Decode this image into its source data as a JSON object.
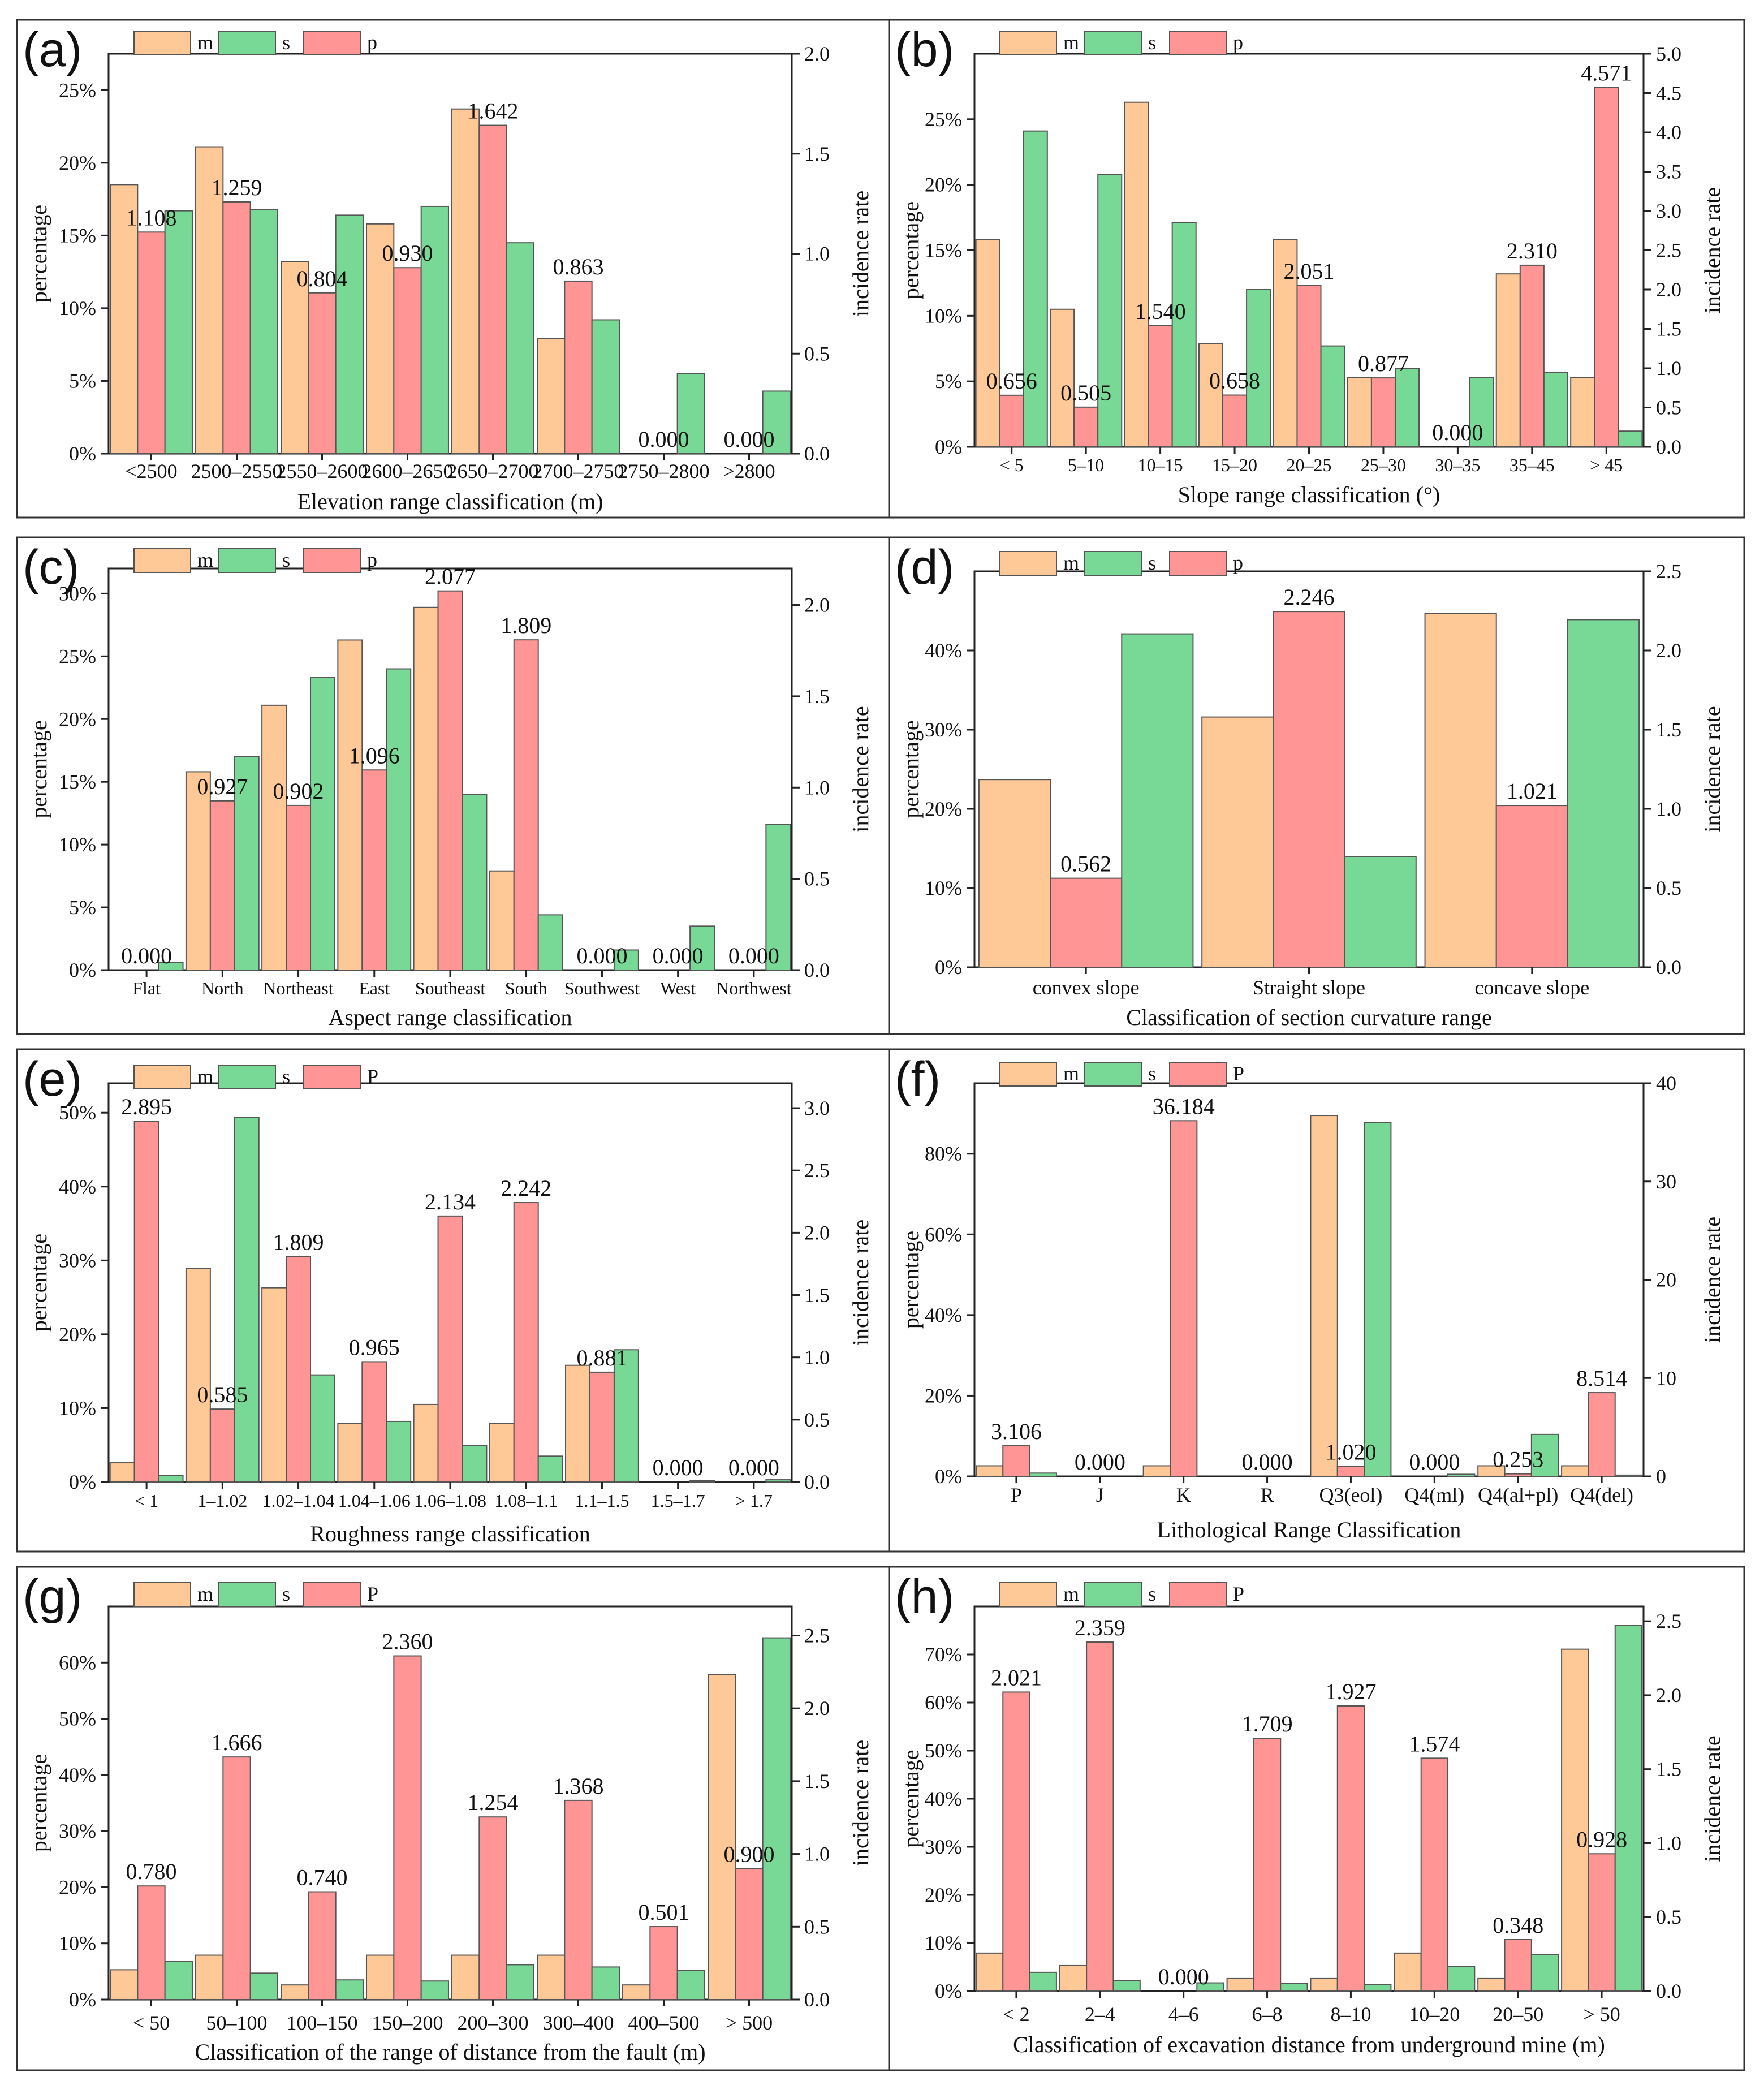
{
  "colors": {
    "m": "#FFC897",
    "s": "#78D896",
    "p": "#FF9595"
  },
  "chart_data": [
    {
      "id": "a",
      "type": "bar",
      "panel_label": "(a)",
      "xlabel": "Elevation range classification (m)",
      "ylabel": "percentage",
      "ylabel_right": "incidence rate",
      "legend": [
        "m",
        "s",
        "p"
      ],
      "categories": [
        "<2500",
        "2500–2550",
        "2550–2600",
        "2600–2650",
        "2650–2700",
        "2700–2750",
        "2750–2800",
        ">2800"
      ],
      "series": [
        {
          "name": "m",
          "axis": "left",
          "values": [
            18.5,
            21.1,
            13.2,
            15.8,
            23.7,
            7.9,
            0,
            0
          ]
        },
        {
          "name": "p",
          "axis": "right",
          "values": [
            1.108,
            1.259,
            0.804,
            0.93,
            1.642,
            0.863,
            0,
            0
          ]
        },
        {
          "name": "s",
          "axis": "left",
          "values": [
            16.7,
            16.8,
            16.4,
            17.0,
            14.5,
            9.2,
            5.5,
            4.3
          ]
        }
      ],
      "p_labels": [
        "1.108",
        "1.259",
        "0.804",
        "0.930",
        "1.642",
        "0.863",
        "0.000",
        "0.000"
      ],
      "ylim": [
        0,
        27.5
      ],
      "y2lim": [
        0,
        2.0
      ],
      "yticks": [
        0,
        5,
        10,
        15,
        20,
        25
      ],
      "yticklabels": [
        "0%",
        "5%",
        "10%",
        "15%",
        "20%",
        "25%"
      ],
      "y2ticks": [
        0,
        0.5,
        1.0,
        1.5,
        2.0
      ],
      "y2ticklabels": [
        "0.0",
        "0.5",
        "1.0",
        "1.5",
        "2.0"
      ]
    },
    {
      "id": "b",
      "type": "bar",
      "panel_label": "(b)",
      "xlabel": "Slope range classification (°)",
      "ylabel": "percentage",
      "ylabel_right": "incidence rate",
      "legend": [
        "m",
        "s",
        "p"
      ],
      "categories": [
        "< 5",
        "5–10",
        "10–15",
        "15–20",
        "20–25",
        "25–30",
        "30–35",
        "35–45",
        "> 45"
      ],
      "series": [
        {
          "name": "m",
          "axis": "left",
          "values": [
            15.8,
            10.5,
            26.3,
            7.9,
            15.8,
            5.3,
            0,
            13.2,
            5.3
          ]
        },
        {
          "name": "p",
          "axis": "right",
          "values": [
            0.656,
            0.505,
            1.54,
            0.658,
            2.051,
            0.877,
            0,
            2.31,
            4.571
          ]
        },
        {
          "name": "s",
          "axis": "left",
          "values": [
            24.1,
            20.8,
            17.1,
            12.0,
            7.7,
            6.0,
            5.3,
            5.7,
            1.2
          ]
        }
      ],
      "p_labels": [
        "0.656",
        "0.505",
        "1.540",
        "0.658",
        "2.051",
        "0.877",
        "0.000",
        "2.310",
        "4.571"
      ],
      "ylim": [
        0,
        30
      ],
      "y2lim": [
        0,
        5.0
      ],
      "yticks": [
        0,
        5,
        10,
        15,
        20,
        25
      ],
      "yticklabels": [
        "0%",
        "5%",
        "10%",
        "15%",
        "20%",
        "25%"
      ],
      "y2ticks": [
        0,
        0.5,
        1.0,
        1.5,
        2.0,
        2.5,
        3.0,
        3.5,
        4.0,
        4.5,
        5.0
      ],
      "y2ticklabels": [
        "0.0",
        "0.5",
        "1.0",
        "1.5",
        "2.0",
        "2.5",
        "3.0",
        "3.5",
        "4.0",
        "4.5",
        "5.0"
      ]
    },
    {
      "id": "c",
      "type": "bar",
      "panel_label": "(c)",
      "xlabel": "Aspect range classification",
      "ylabel": "percentage",
      "ylabel_right": "incidence rate",
      "legend": [
        "m",
        "s",
        "p"
      ],
      "categories": [
        "Flat",
        "North",
        "Northeast",
        "East",
        "Southeast",
        "South",
        "Southwest",
        "West",
        "Northwest"
      ],
      "series": [
        {
          "name": "m",
          "axis": "left",
          "values": [
            0,
            15.8,
            21.1,
            26.3,
            28.9,
            7.9,
            0,
            0,
            0
          ]
        },
        {
          "name": "p",
          "axis": "right",
          "values": [
            0,
            0.927,
            0.902,
            1.096,
            2.077,
            1.809,
            0,
            0,
            0
          ]
        },
        {
          "name": "s",
          "axis": "left",
          "values": [
            0.6,
            17.0,
            23.3,
            24.0,
            14.0,
            4.4,
            1.6,
            3.5,
            11.6
          ]
        }
      ],
      "p_labels": [
        "0.000",
        "0.927",
        "0.902",
        "1.096",
        "2.077",
        "1.809",
        "0.000",
        "0.000",
        "0.000"
      ],
      "ylim": [
        0,
        32
      ],
      "y2lim": [
        0,
        2.2
      ],
      "yticks": [
        0,
        5,
        10,
        15,
        20,
        25,
        30
      ],
      "yticklabels": [
        "0%",
        "5%",
        "10%",
        "15%",
        "20%",
        "25%",
        "30%"
      ],
      "y2ticks": [
        0,
        0.5,
        1.0,
        1.5,
        2.0
      ],
      "y2ticklabels": [
        "0.0",
        "0.5",
        "1.0",
        "1.5",
        "2.0"
      ]
    },
    {
      "id": "d",
      "type": "bar",
      "panel_label": "(d)",
      "xlabel": "Classification of section curvature range",
      "ylabel": "percentage",
      "ylabel_right": "incidence rate",
      "legend": [
        "m",
        "s",
        "p"
      ],
      "categories": [
        "convex slope",
        "Straight slope",
        "concave slope"
      ],
      "series": [
        {
          "name": "m",
          "axis": "left",
          "values": [
            23.7,
            31.6,
            44.7
          ]
        },
        {
          "name": "p",
          "axis": "right",
          "values": [
            0.562,
            2.246,
            1.021
          ]
        },
        {
          "name": "s",
          "axis": "left",
          "values": [
            42.1,
            14.0,
            43.9
          ]
        }
      ],
      "p_labels": [
        "0.562",
        "2.246",
        "1.021"
      ],
      "ylim": [
        0,
        50
      ],
      "y2lim": [
        0,
        2.5
      ],
      "yticks": [
        0,
        10,
        20,
        30,
        40
      ],
      "yticklabels": [
        "0%",
        "10%",
        "20%",
        "30%",
        "40%"
      ],
      "y2ticks": [
        0,
        0.5,
        1.0,
        1.5,
        2.0,
        2.5
      ],
      "y2ticklabels": [
        "0.0",
        "0.5",
        "1.0",
        "1.5",
        "2.0",
        "2.5"
      ]
    },
    {
      "id": "e",
      "type": "bar",
      "panel_label": "(e)",
      "xlabel": "Roughness range classification",
      "ylabel": "percentage",
      "ylabel_right": "incidence rate",
      "legend": [
        "m",
        "s",
        "P"
      ],
      "categories": [
        "< 1",
        "1–1.02",
        "1.02–1.04",
        "1.04–1.06",
        "1.06–1.08",
        "1.08–1.1",
        "1.1–1.5",
        "1.5–1.7",
        "> 1.7"
      ],
      "series": [
        {
          "name": "m",
          "axis": "left",
          "values": [
            2.6,
            28.9,
            26.3,
            7.9,
            10.5,
            7.9,
            15.8,
            0,
            0
          ]
        },
        {
          "name": "p",
          "axis": "right",
          "values": [
            2.895,
            0.585,
            1.809,
            0.965,
            2.134,
            2.242,
            0.881,
            0,
            0
          ]
        },
        {
          "name": "s",
          "axis": "left",
          "values": [
            0.9,
            49.4,
            14.5,
            8.2,
            4.9,
            3.5,
            17.9,
            0.2,
            0.3
          ]
        }
      ],
      "p_labels": [
        "2.895",
        "0.585",
        "1.809",
        "0.965",
        "2.134",
        "2.242",
        "0.881",
        "0.000",
        "0.000"
      ],
      "ylim": [
        0,
        54
      ],
      "y2lim": [
        0,
        3.2
      ],
      "yticks": [
        0,
        10,
        20,
        30,
        40,
        50
      ],
      "yticklabels": [
        "0%",
        "10%",
        "20%",
        "30%",
        "40%",
        "50%"
      ],
      "y2ticks": [
        0,
        0.5,
        1.0,
        1.5,
        2.0,
        2.5,
        3.0
      ],
      "y2ticklabels": [
        "0.0",
        "0.5",
        "1.0",
        "1.5",
        "2.0",
        "2.5",
        "3.0"
      ]
    },
    {
      "id": "f",
      "type": "bar",
      "panel_label": "(f)",
      "xlabel": "Lithological Range Classification",
      "ylabel": "percentage",
      "ylabel_right": "incidence rate",
      "legend": [
        "m",
        "s",
        "P"
      ],
      "categories": [
        "P",
        "J",
        "K",
        "R",
        "Q3(eol)",
        "Q4(ml)",
        "Q4(al+pl)",
        "Q4(del)"
      ],
      "series": [
        {
          "name": "m",
          "axis": "left",
          "values": [
            2.6,
            0,
            2.6,
            0,
            89.5,
            0,
            2.6,
            2.6
          ]
        },
        {
          "name": "p",
          "axis": "right",
          "values": [
            3.106,
            0,
            36.184,
            0,
            1.02,
            0,
            0.253,
            8.514
          ]
        },
        {
          "name": "s",
          "axis": "left",
          "values": [
            0.8,
            0,
            0,
            0,
            87.8,
            0.5,
            10.4,
            0.3
          ]
        }
      ],
      "p_labels": [
        "3.106",
        "0.000",
        "36.184",
        "0.000",
        "1.020",
        "0.000",
        "0.253",
        "8.514"
      ],
      "ylim": [
        0,
        97.5
      ],
      "y2lim": [
        0,
        40
      ],
      "yticks": [
        0,
        20,
        40,
        60,
        80
      ],
      "yticklabels": [
        "0%",
        "20%",
        "40%",
        "60%",
        "80%"
      ],
      "y2ticks": [
        0,
        10,
        20,
        30,
        40
      ],
      "y2ticklabels": [
        "0",
        "10",
        "20",
        "30",
        "40"
      ]
    },
    {
      "id": "g",
      "type": "bar",
      "panel_label": "(g)",
      "xlabel": "Classification of the range of distance from the fault (m)",
      "ylabel": "percentage",
      "ylabel_right": "incidence rate",
      "legend": [
        "m",
        "s",
        "P"
      ],
      "categories": [
        "< 50",
        "50–100",
        "100–150",
        "150–200",
        "200–300",
        "300–400",
        "400–500",
        "> 500"
      ],
      "series": [
        {
          "name": "m",
          "axis": "left",
          "values": [
            5.3,
            7.9,
            2.6,
            7.9,
            7.9,
            7.9,
            2.6,
            57.9
          ]
        },
        {
          "name": "p",
          "axis": "right",
          "values": [
            0.78,
            1.666,
            0.74,
            2.36,
            1.254,
            1.368,
            0.501,
            0.9
          ]
        },
        {
          "name": "s",
          "axis": "left",
          "values": [
            6.8,
            4.7,
            3.5,
            3.3,
            6.2,
            5.8,
            5.2,
            64.4
          ]
        }
      ],
      "p_labels": [
        "0.780",
        "1.666",
        "0.740",
        "2.360",
        "1.254",
        "1.368",
        "0.501",
        "0.900"
      ],
      "ylim": [
        0,
        70
      ],
      "y2lim": [
        0,
        2.7
      ],
      "yticks": [
        0,
        10,
        20,
        30,
        40,
        50,
        60
      ],
      "yticklabels": [
        "0%",
        "10%",
        "20%",
        "30%",
        "40%",
        "50%",
        "60%"
      ],
      "y2ticks": [
        0,
        0.5,
        1.0,
        1.5,
        2.0,
        2.5
      ],
      "y2ticklabels": [
        "0.0",
        "0.5",
        "1.0",
        "1.5",
        "2.0",
        "2.5"
      ]
    },
    {
      "id": "h",
      "type": "bar",
      "panel_label": "(h)",
      "xlabel": "Classification of excavation distance from underground mine (m)",
      "ylabel": "percentage",
      "ylabel_right": "incidence rate",
      "legend": [
        "m",
        "s",
        "P"
      ],
      "categories": [
        "< 2",
        "2–4",
        "4–6",
        "6–8",
        "8–10",
        "10–20",
        "20–50",
        "> 50"
      ],
      "series": [
        {
          "name": "m",
          "axis": "left",
          "values": [
            7.9,
            5.3,
            0,
            2.6,
            2.6,
            7.9,
            2.6,
            71.1
          ]
        },
        {
          "name": "p",
          "axis": "right",
          "values": [
            2.021,
            2.359,
            0,
            1.709,
            1.927,
            1.574,
            0.348,
            0.928
          ]
        },
        {
          "name": "s",
          "axis": "left",
          "values": [
            3.9,
            2.2,
            1.7,
            1.6,
            1.3,
            5.1,
            7.6,
            76.0
          ]
        }
      ],
      "p_labels": [
        "2.021",
        "2.359",
        "0.000",
        "1.709",
        "1.927",
        "1.574",
        "0.348",
        "0.928"
      ],
      "ylim": [
        0,
        80
      ],
      "y2lim": [
        0,
        2.6
      ],
      "yticks": [
        0,
        10,
        20,
        30,
        40,
        50,
        60,
        70
      ],
      "yticklabels": [
        "0%",
        "10%",
        "20%",
        "30%",
        "40%",
        "50%",
        "60%",
        "70%"
      ],
      "y2ticks": [
        0,
        0.5,
        1.0,
        1.5,
        2.0,
        2.5
      ],
      "y2ticklabels": [
        "0.0",
        "0.5",
        "1.0",
        "1.5",
        "2.0",
        "2.5"
      ]
    }
  ]
}
